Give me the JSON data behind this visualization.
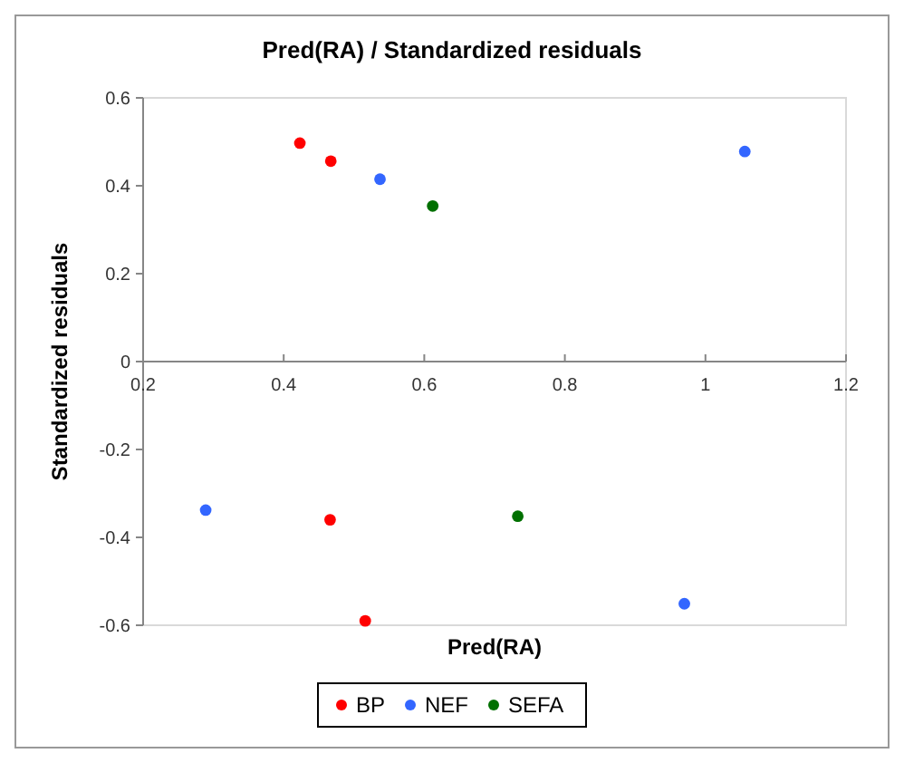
{
  "chart_data": {
    "type": "scatter",
    "title": "Pred(RA) / Standardized residuals",
    "xlabel": "Pred(RA)",
    "ylabel": "Standardized residuals",
    "xlim": [
      0.2,
      1.2
    ],
    "xticks": [
      0.2,
      0.4,
      0.6,
      0.8,
      1,
      1.2
    ],
    "ylim": [
      -0.6,
      0.6
    ],
    "yticks": [
      -0.6,
      -0.4,
      -0.2,
      0,
      0.2,
      0.4,
      0.6
    ],
    "grid": false,
    "legend": "bottom",
    "marker": "circle",
    "series": [
      {
        "name": "BP",
        "color": "#ff0000",
        "x": [
          0.423,
          0.467,
          0.466,
          0.516
        ],
        "values": [
          0.497,
          0.456,
          -0.36,
          -0.59
        ]
      },
      {
        "name": "NEF",
        "color": "#3366ff",
        "x": [
          0.537,
          1.056,
          0.289,
          0.97
        ],
        "values": [
          0.415,
          0.478,
          -0.338,
          -0.551
        ]
      },
      {
        "name": "SEFA",
        "color": "#007000",
        "x": [
          0.612,
          0.733
        ],
        "values": [
          0.354,
          -0.352
        ]
      }
    ]
  }
}
